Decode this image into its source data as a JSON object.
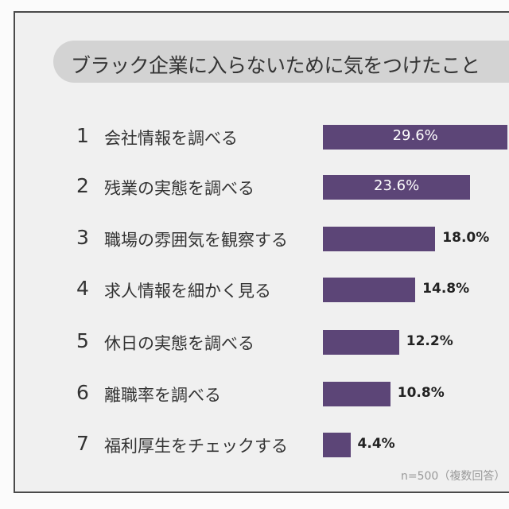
{
  "chart_data": {
    "type": "bar",
    "orientation": "horizontal",
    "title": "ブラック企業に入らないために気をつけたこと",
    "ranks": [
      "1",
      "2",
      "3",
      "4",
      "5",
      "6",
      "7"
    ],
    "categories": [
      "会社情報を調べる",
      "残業の実態を調べる",
      "職場の雰囲気を観察する",
      "求人情報を細かく見る",
      "休日の実態を調べる",
      "離職率を調べる",
      "福利厚生をチェックする"
    ],
    "values": [
      29.6,
      23.6,
      18.0,
      14.8,
      12.2,
      10.8,
      4.4
    ],
    "value_labels": [
      "29.6%",
      "23.6%",
      "18.0%",
      "14.8%",
      "12.2%",
      "10.8%",
      "4.4%"
    ],
    "note": "n=500（複数回答）",
    "bar_color": "#5c4577",
    "grid": false
  }
}
